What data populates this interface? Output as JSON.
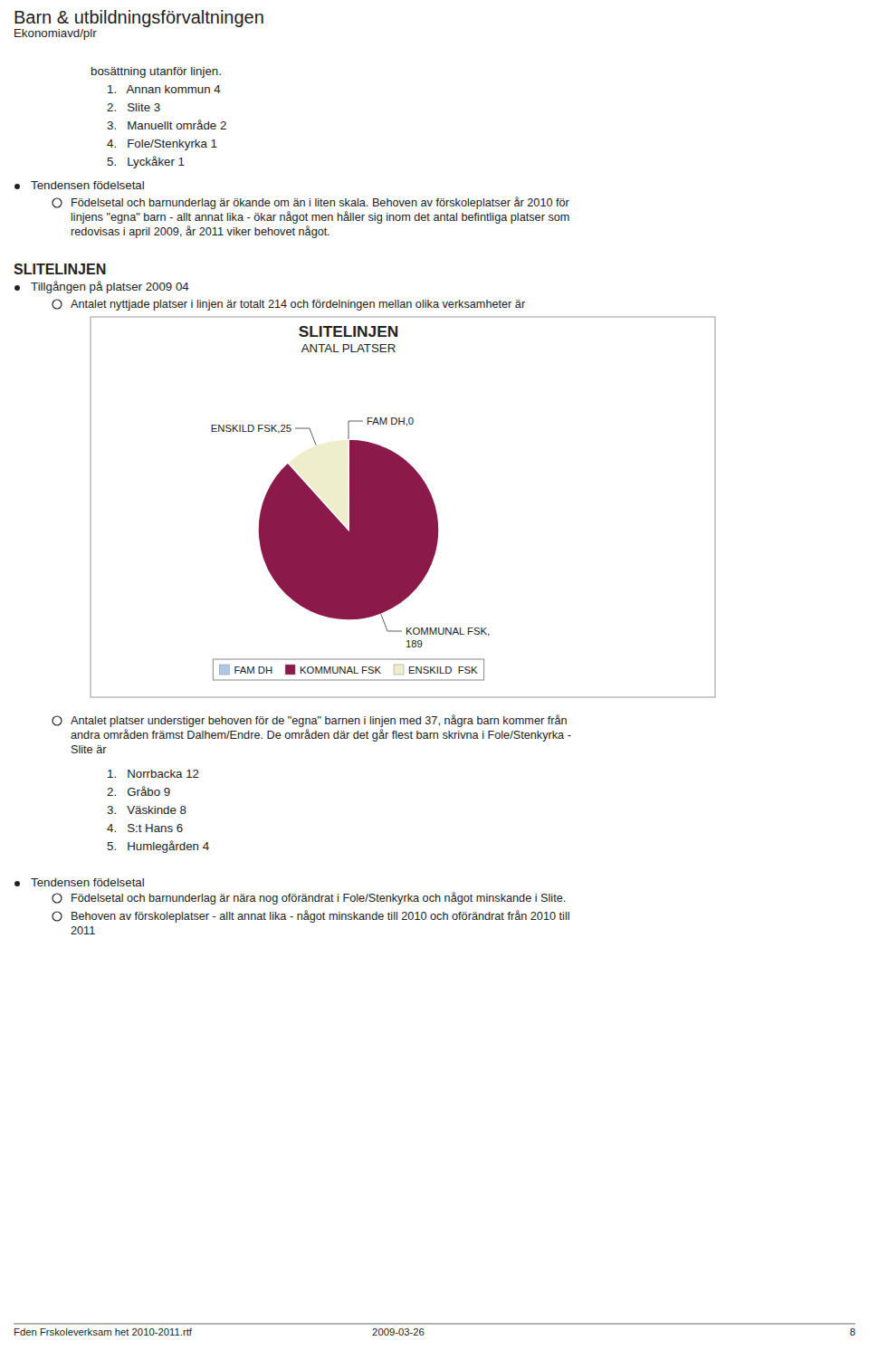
{
  "page": {
    "title_main": "Barn & utbildningsförvaltningen",
    "title_sub": "Ekonomiavd/plr",
    "header_text": "bosättning utanför linjen.",
    "numbered_items": [
      "1.   Annan kommun 4",
      "2.   Slite 3",
      "3.   Manuellt område 2",
      "4.   Fole/Stenkyrka 1",
      "5.   Lyckåker 1"
    ],
    "bullet1_title": "Tendensen födelsetal",
    "bullet1_lines": [
      "Födelsetal och barnunderlag är ökande om än i liten skala. Behoven av förskoleplatser år 2010 för",
      "linjens \"egna\" barn - allt annat lika - ökar något men håller sig inom det antal befintliga platser som",
      "redovisas i april 2009, år 2011 viker behovet något."
    ],
    "section_title": "SLITELINJEN",
    "section_sub": "Tillgången på platser 2009 04",
    "section_bullet": "Antalet nyttjade platser i linjen är totalt 214 och fördelningen mellan olika verksamheter är",
    "bullet2_lines": [
      "Antalet platser understiger behoven för de \"egna\" barnen i linjen med 37, några barn kommer från",
      "andra områden främst Dalhem/Endre. De områden där det går flest barn skrivna i Fole/Stenkyrka -",
      "Slite är"
    ],
    "numbered_items2": [
      "1.   Norrbacka 12",
      "2.   Gråbo 9",
      "3.   Väskinde 8",
      "4.   S:t Hans 6",
      "5.   Humlegården 4"
    ],
    "bullet3_title": "Tendensen födelsetal",
    "bullet3_lines1": [
      "Födelsetal och barnunderlag är nära nog oförändrat i Fole/Stenkyrka och något minskande i Slite."
    ],
    "bullet3_lines2": [
      "Behoven av förskoleplatser - allt annat lika - något minskande till 2010 och oförändrat från 2010 till",
      "2011"
    ],
    "footer_left": "Fden Frskoleverksam het 2010-2011.rtf",
    "footer_mid": "2009-03-26",
    "footer_right": "8"
  },
  "chart_data": {
    "type": "pie",
    "title": "SLITELINJEN",
    "subtitle": "ANTAL PLATSER",
    "categories": [
      "FAM DH",
      "KOMMUNAL FSK",
      "ENSKILD  FSK"
    ],
    "values": [
      0.001,
      189,
      25
    ],
    "value_labels": [
      "FAM DH,0",
      "KOMMUNAL FSK,\n189",
      "ENSKILD FSK,25"
    ],
    "data_labels": true,
    "colors": [
      "#aec6e8",
      "#8b1a4a",
      "#eeeecc"
    ],
    "legend": "bottom"
  }
}
